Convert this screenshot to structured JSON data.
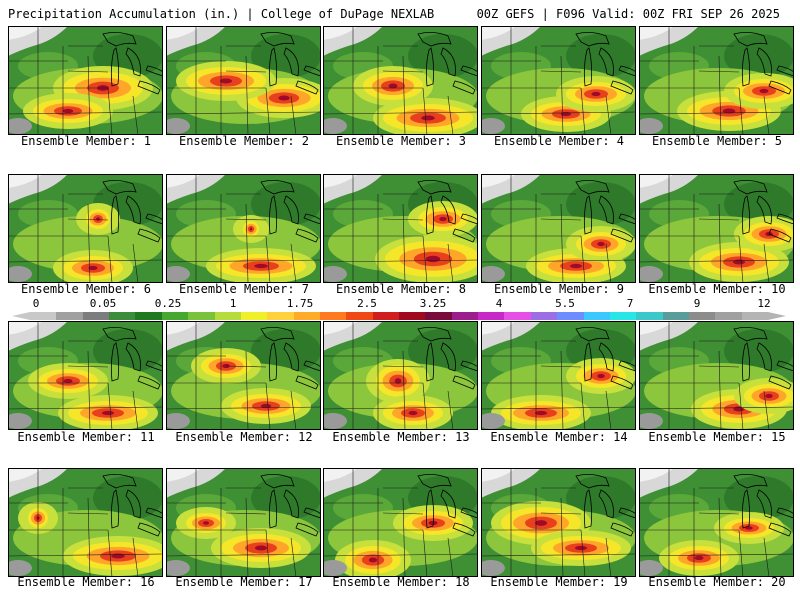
{
  "header": {
    "left": "Precipitation Accumulation (in.) | College of DuPage NEXLAB",
    "right": "00Z GEFS | F096 Valid: 00Z FRI SEP 26 2025"
  },
  "colorbar": {
    "tick_labels": [
      "0",
      "0.05",
      "0.25",
      "1",
      "1.75",
      "2.5",
      "3.25",
      "4",
      "5.5",
      "7",
      "9",
      "12"
    ],
    "colors": [
      "#c8c8c8",
      "#a0a0a0",
      "#7d7d7d",
      "#3c8c3c",
      "#1f7a1f",
      "#47a82f",
      "#7ac23a",
      "#b5dc3c",
      "#f0f02a",
      "#ffd23c",
      "#ffaa28",
      "#ff7a1e",
      "#f04a14",
      "#d01e1e",
      "#a00a1e",
      "#780a3c",
      "#9b1e8c",
      "#c828c8",
      "#e650e6",
      "#9b6ee6",
      "#6e8cff",
      "#3cc8ff",
      "#28e6e6",
      "#3cc8c8",
      "#5a9b9b",
      "#8c8c8c",
      "#a0a0a0",
      "#b4b4b4"
    ]
  },
  "panels": [
    {
      "label": "Ensemble Member: 1"
    },
    {
      "label": "Ensemble Member: 2"
    },
    {
      "label": "Ensemble Member: 3"
    },
    {
      "label": "Ensemble Member: 4"
    },
    {
      "label": "Ensemble Member: 5"
    },
    {
      "label": "Ensemble Member: 6"
    },
    {
      "label": "Ensemble Member: 7"
    },
    {
      "label": "Ensemble Member: 8"
    },
    {
      "label": "Ensemble Member: 9"
    },
    {
      "label": "Ensemble Member: 10"
    },
    {
      "label": "Ensemble Member: 11"
    },
    {
      "label": "Ensemble Member: 12"
    },
    {
      "label": "Ensemble Member: 13"
    },
    {
      "label": "Ensemble Member: 14"
    },
    {
      "label": "Ensemble Member: 15"
    },
    {
      "label": "Ensemble Member: 16"
    },
    {
      "label": "Ensemble Member: 17"
    },
    {
      "label": "Ensemble Member: 18"
    },
    {
      "label": "Ensemble Member: 19"
    },
    {
      "label": "Ensemble Member: 20"
    }
  ]
}
